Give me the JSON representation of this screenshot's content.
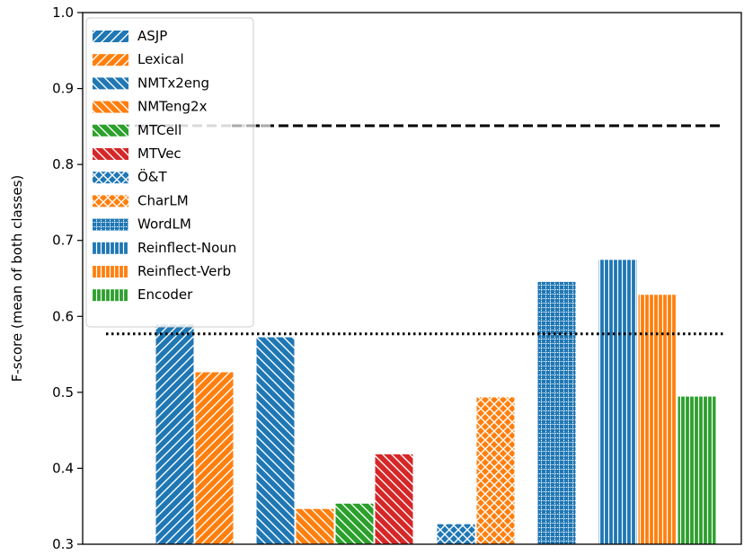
{
  "chart_data": {
    "type": "bar",
    "title": "",
    "xlabel": "",
    "ylabel": "F-score (mean of both classes)",
    "ylim": [
      0.3,
      1.0
    ],
    "yticks": [
      "0.3",
      "0.4",
      "0.5",
      "0.6",
      "0.7",
      "0.8",
      "0.9",
      "1.0"
    ],
    "legend_position": "top-left",
    "series": [
      {
        "name": "ASJP",
        "value": 0.59,
        "color": "#1f77b4",
        "hatch": "diag-up"
      },
      {
        "name": "Lexical",
        "value": 0.527,
        "color": "#ff7f0e",
        "hatch": "diag-up"
      },
      {
        "name": "NMTx2eng",
        "value": 0.573,
        "color": "#1f77b4",
        "hatch": "diag-down"
      },
      {
        "name": "NMTeng2x",
        "value": 0.347,
        "color": "#ff7f0e",
        "hatch": "diag-down"
      },
      {
        "name": "MTCell",
        "value": 0.354,
        "color": "#2ca02c",
        "hatch": "diag-down"
      },
      {
        "name": "MTVec",
        "value": 0.419,
        "color": "#d62728",
        "hatch": "diag-down"
      },
      {
        "name": "Ö&T",
        "value": 0.327,
        "color": "#1f77b4",
        "hatch": "cross"
      },
      {
        "name": "CharLM",
        "value": 0.494,
        "color": "#ff7f0e",
        "hatch": "cross"
      },
      {
        "name": "WordLM",
        "value": 0.646,
        "color": "#1f77b4",
        "hatch": "grid"
      },
      {
        "name": "Reinflect-Noun",
        "value": 0.675,
        "color": "#1f77b4",
        "hatch": "vertical"
      },
      {
        "name": "Reinflect-Verb",
        "value": 0.629,
        "color": "#ff7f0e",
        "hatch": "vertical"
      },
      {
        "name": "Encoder",
        "value": 0.495,
        "color": "#2ca02c",
        "hatch": "vertical"
      }
    ],
    "reference_lines": [
      {
        "value": 0.851,
        "style": "dashed",
        "color": "#000000"
      },
      {
        "value": 0.577,
        "style": "dotted",
        "color": "#000000"
      }
    ]
  }
}
